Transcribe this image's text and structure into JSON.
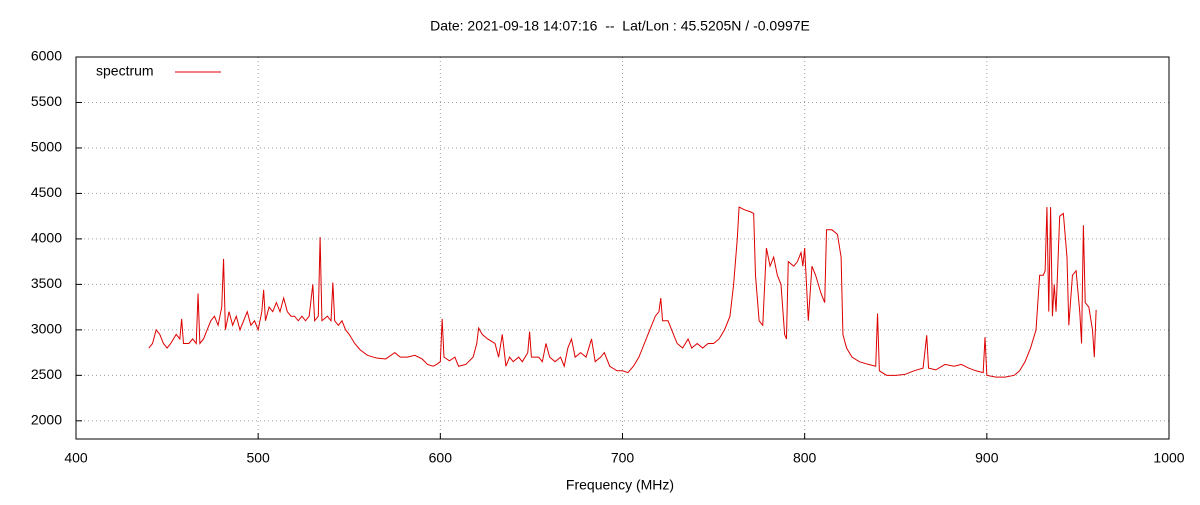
{
  "chart_data": {
    "type": "line",
    "title": "Date: 2021-09-18 14:07:16  --  Lat/Lon : 45.5205N / -0.0997E",
    "x_label": "Frequency (MHz)",
    "xlim": [
      400,
      1000
    ],
    "xticks": [
      400,
      500,
      600,
      700,
      800,
      900,
      1000
    ],
    "ylim": [
      1800,
      6000
    ],
    "yticks": [
      2000,
      2500,
      3000,
      3500,
      4000,
      4500,
      5000,
      5500,
      6000
    ],
    "grid": true,
    "legend": "top-left",
    "x": [
      440,
      442,
      444,
      446,
      448,
      450,
      452,
      455,
      457,
      458,
      459,
      462,
      464,
      466,
      467,
      468,
      470,
      472,
      474,
      476,
      478,
      480,
      481,
      482,
      484,
      486,
      488,
      490,
      492,
      494,
      496,
      498,
      500,
      502,
      503,
      504,
      506,
      508,
      510,
      512,
      514,
      516,
      518,
      520,
      522,
      524,
      526,
      528,
      530,
      531,
      533,
      534,
      535,
      538,
      540,
      541,
      542,
      544,
      546,
      548,
      550,
      553,
      556,
      560,
      565,
      570,
      575,
      578,
      582,
      586,
      590,
      593,
      596,
      598,
      600,
      601,
      602,
      605,
      608,
      610,
      614,
      618,
      620,
      621,
      623,
      626,
      630,
      632,
      634,
      636,
      638,
      640,
      643,
      645,
      648,
      649,
      650,
      654,
      656,
      658,
      660,
      663,
      666,
      668,
      670,
      672,
      674,
      677,
      680,
      683,
      685,
      688,
      690,
      693,
      697,
      700,
      703,
      706,
      709,
      712,
      715,
      718,
      720,
      721,
      722,
      725,
      728,
      730,
      733,
      736,
      738,
      741,
      744,
      747,
      750,
      753,
      756,
      759,
      761,
      763,
      764,
      767,
      770,
      772,
      773,
      775,
      777,
      779,
      781,
      783,
      785,
      787,
      789,
      790,
      791,
      794,
      796,
      798,
      799,
      800,
      802,
      804,
      806,
      809,
      811,
      812,
      815,
      818,
      820,
      821,
      823,
      826,
      830,
      835,
      839,
      840,
      841,
      845,
      850,
      855,
      860,
      865,
      867,
      868,
      872,
      877,
      882,
      886,
      890,
      894,
      898,
      899,
      900,
      905,
      910,
      915,
      918,
      921,
      924,
      927,
      929,
      931,
      932,
      933,
      934,
      935,
      936,
      937,
      938,
      940,
      942,
      944,
      945,
      947,
      949,
      951,
      952,
      953,
      954,
      956,
      958,
      959,
      960
    ],
    "series": [
      {
        "name": "spectrum",
        "color": "#dd0000",
        "values": [
          2800,
          2850,
          3000,
          2950,
          2850,
          2800,
          2850,
          2950,
          2900,
          3120,
          2850,
          2850,
          2900,
          2850,
          3400,
          2850,
          2900,
          3000,
          3100,
          3150,
          3050,
          3250,
          3780,
          3000,
          3200,
          3050,
          3150,
          3000,
          3100,
          3200,
          3050,
          3100,
          3000,
          3200,
          3440,
          3100,
          3250,
          3200,
          3300,
          3200,
          3350,
          3200,
          3150,
          3150,
          3100,
          3150,
          3100,
          3150,
          3500,
          3100,
          3150,
          4020,
          3100,
          3150,
          3100,
          3520,
          3100,
          3050,
          3100,
          3000,
          2950,
          2850,
          2780,
          2720,
          2690,
          2680,
          2750,
          2700,
          2700,
          2720,
          2680,
          2620,
          2600,
          2620,
          2650,
          3120,
          2700,
          2660,
          2700,
          2600,
          2620,
          2700,
          2850,
          3020,
          2950,
          2900,
          2850,
          2700,
          2950,
          2600,
          2700,
          2650,
          2700,
          2650,
          2750,
          2980,
          2700,
          2700,
          2650,
          2850,
          2700,
          2650,
          2700,
          2600,
          2800,
          2900,
          2700,
          2750,
          2700,
          2900,
          2650,
          2700,
          2750,
          2600,
          2550,
          2550,
          2530,
          2600,
          2700,
          2850,
          3000,
          3150,
          3200,
          3350,
          3100,
          3100,
          2950,
          2850,
          2800,
          2900,
          2800,
          2850,
          2800,
          2850,
          2850,
          2900,
          3000,
          3150,
          3500,
          4000,
          4350,
          4320,
          4300,
          4280,
          3600,
          3100,
          3050,
          3900,
          3700,
          3800,
          3600,
          3500,
          2950,
          2900,
          3750,
          3700,
          3750,
          3850,
          3700,
          3900,
          3100,
          3700,
          3600,
          3400,
          3300,
          4100,
          4100,
          4050,
          3800,
          2950,
          2800,
          2700,
          2650,
          2620,
          2600,
          3180,
          2550,
          2500,
          2500,
          2510,
          2550,
          2580,
          2940,
          2580,
          2560,
          2620,
          2600,
          2620,
          2580,
          2550,
          2530,
          2920,
          2500,
          2480,
          2480,
          2500,
          2550,
          2650,
          2800,
          3000,
          3600,
          3600,
          3650,
          4350,
          3200,
          4350,
          3150,
          3500,
          3200,
          4250,
          4280,
          3800,
          3050,
          3600,
          3650,
          3200,
          2850,
          4150,
          3300,
          3250,
          3000,
          2700,
          3220
        ]
      }
    ]
  }
}
